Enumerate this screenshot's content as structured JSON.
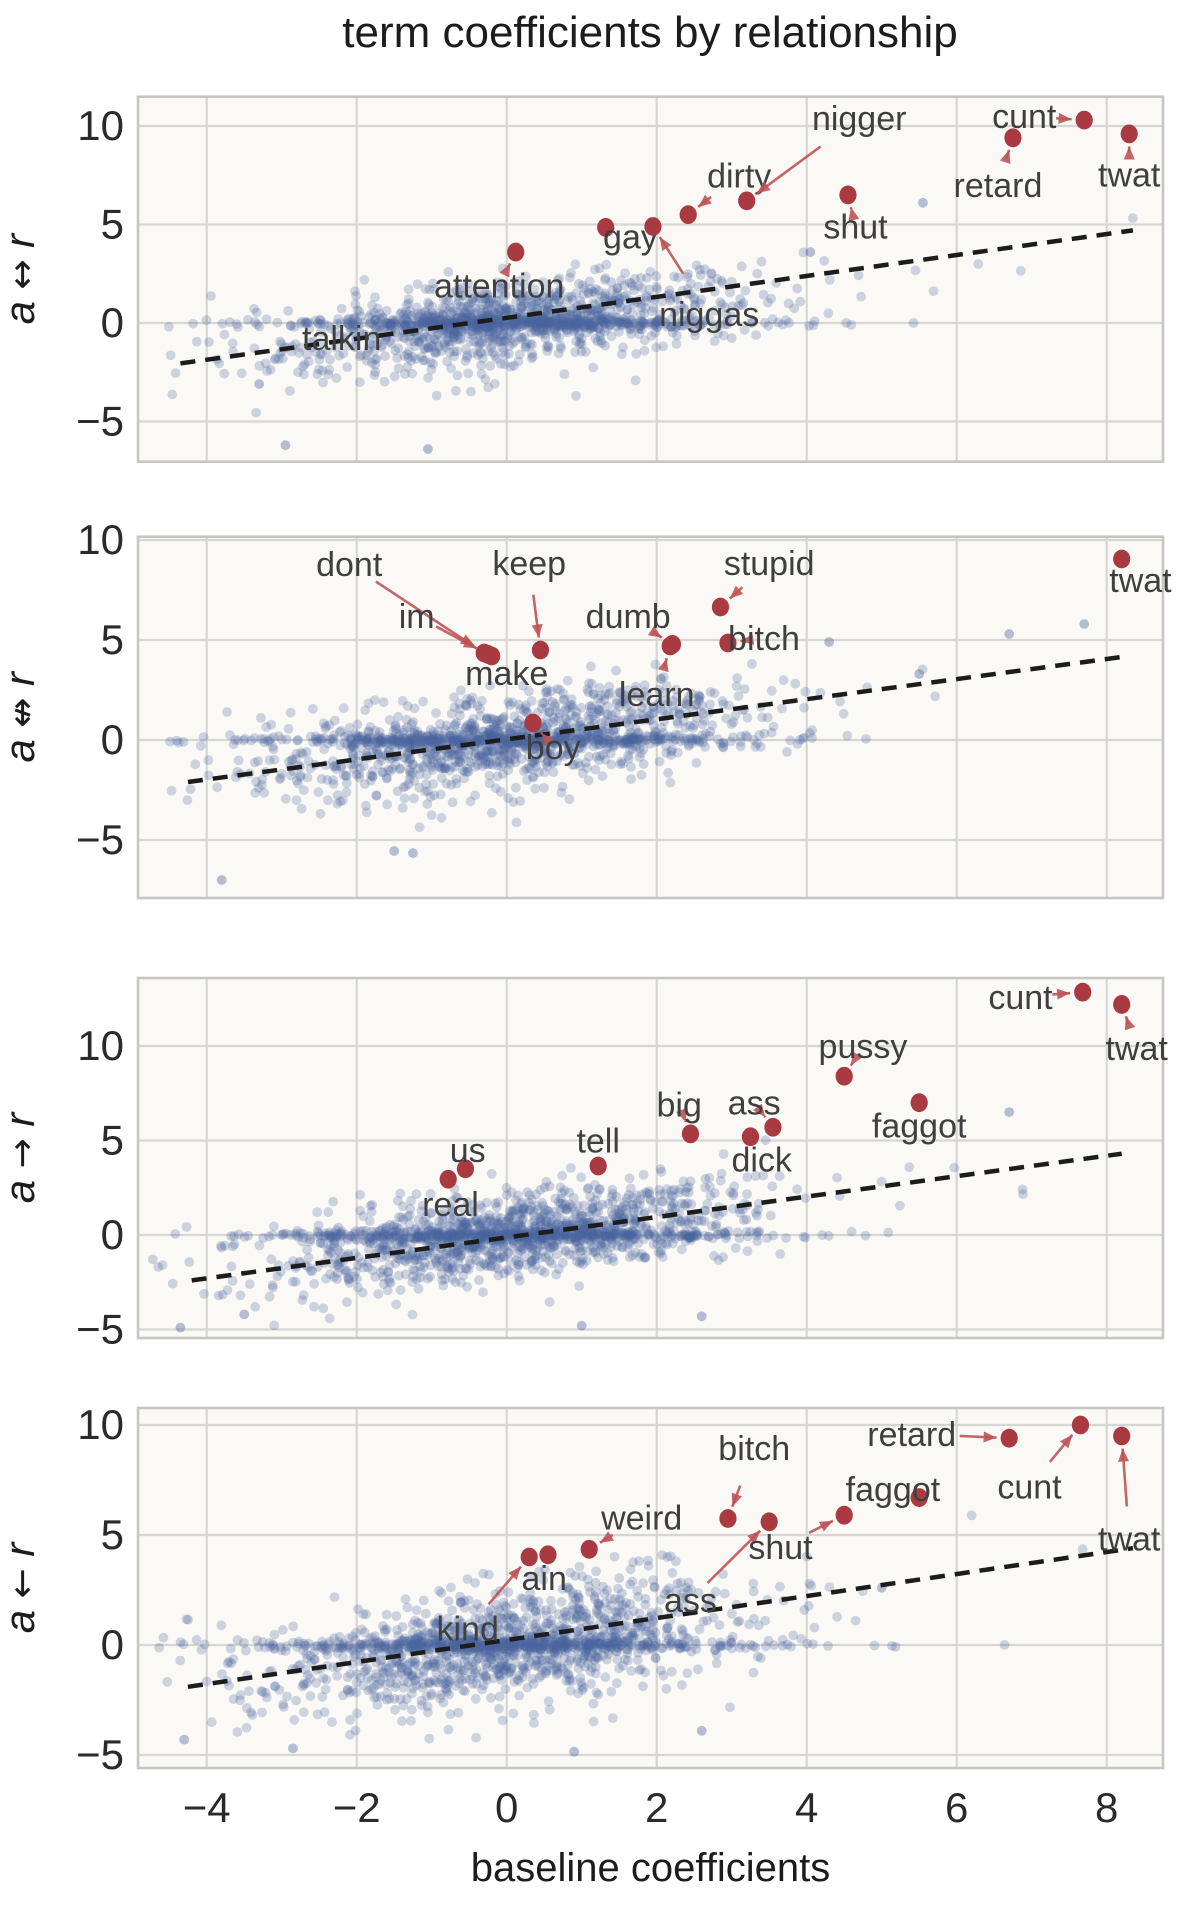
{
  "title": "term coefficients by relationship",
  "xlabel": "baseline coefficients",
  "colors": {
    "background": "#ffffff",
    "panel_bg": "#faf9f5",
    "grid": "#d6d6d3",
    "frame": "#c6c6c3",
    "scatter_blue": "#4a639e",
    "highlight_red": "#a93a42",
    "arrow_red": "#bf5358",
    "annotation_text": "#3f3f3f",
    "trend_dash": "#1c1c1c"
  },
  "chart_data": {
    "type": "scatter",
    "title": "term coefficients by relationship",
    "xlabel": "baseline coefficients",
    "x_ticks": [
      -4,
      -2,
      0,
      2,
      4,
      6,
      8
    ],
    "x_tick_labels": [
      "−4",
      "−2",
      "0",
      "2",
      "4",
      "6",
      "8"
    ],
    "x_range": [
      -4.92,
      8.75
    ],
    "grid": true,
    "legend": "none",
    "description": "Four stacked scatter panels of term coefficients vs baseline coefficients; dense blue cloud of unlabeled terms (synthesized from cloud params), dashed trend line, dark-red annotated outlier terms.",
    "panels": [
      {
        "ylabel": "a ↔ r",
        "y_ticks": [
          10,
          5,
          0,
          -5
        ],
        "y_tick_labels": [
          "10",
          "5",
          "0",
          "−5"
        ],
        "y_range": [
          -7.0,
          11.5
        ],
        "trend_line": {
          "x1": -4.35,
          "y1": -2.05,
          "x2": 8.35,
          "y2": 4.7
        },
        "cloud": {
          "n": 1450,
          "seed": 11,
          "x_mean": 0.0,
          "x_sigma": 1.5,
          "slope": 0.45,
          "noise": 1.0,
          "band_frac": 0.3
        },
        "outliers": [
          [
            -1.05,
            -6.4
          ],
          [
            -2.95,
            -6.2
          ],
          [
            5.55,
            6.1
          ],
          [
            -3.3,
            -3.1
          ],
          [
            4.05,
            3.6
          ]
        ],
        "annotations": [
          {
            "term": "talkin",
            "label": [
              -2.2,
              -0.75
            ],
            "point": null
          },
          {
            "term": "attention",
            "label": [
              -0.1,
              1.9
            ],
            "point": [
              0.12,
              3.6
            ]
          },
          {
            "term": "gay",
            "label": [
              1.65,
              4.4
            ],
            "point": [
              1.32,
              4.85
            ]
          },
          {
            "term": "niggas",
            "label": [
              2.7,
              0.45
            ],
            "point": [
              1.95,
              4.9
            ]
          },
          {
            "term": "dirty",
            "label": [
              3.1,
              7.5
            ],
            "point": [
              2.42,
              5.5
            ]
          },
          {
            "term": "nigger",
            "label": [
              4.7,
              10.4
            ],
            "point": [
              3.2,
              6.2
            ]
          },
          {
            "term": "shut",
            "label": [
              4.65,
              4.9
            ],
            "point": [
              4.55,
              6.5
            ]
          },
          {
            "term": "retard",
            "label": [
              6.55,
              7.0
            ],
            "point": [
              6.75,
              9.4
            ]
          },
          {
            "term": "cunt",
            "label": [
              6.9,
              10.5
            ],
            "point": [
              7.7,
              10.3
            ]
          },
          {
            "term": "twat",
            "label": [
              8.3,
              7.55
            ],
            "point": [
              8.3,
              9.6
            ]
          }
        ]
      },
      {
        "ylabel": "a ↮ r",
        "y_ticks": [
          10,
          5,
          0,
          -5
        ],
        "y_tick_labels": [
          "10",
          "5",
          "0",
          "−5"
        ],
        "y_range": [
          -7.9,
          10.2
        ],
        "trend_line": {
          "x1": -4.25,
          "y1": -2.1,
          "x2": 8.2,
          "y2": 4.15
        },
        "cloud": {
          "n": 1500,
          "seed": 23,
          "x_mean": 0.0,
          "x_sigma": 1.5,
          "slope": 0.42,
          "noise": 1.15,
          "band_frac": 0.28
        },
        "outliers": [
          [
            -3.8,
            -7.0
          ],
          [
            -1.5,
            -5.55
          ],
          [
            -1.25,
            -5.65
          ],
          [
            6.7,
            5.3
          ],
          [
            7.7,
            5.8
          ],
          [
            4.3,
            4.9
          ],
          [
            5.5,
            3.3
          ]
        ],
        "annotations": [
          {
            "term": "dont",
            "label": [
              -2.1,
              8.8
            ],
            "point": [
              -0.3,
              4.35
            ]
          },
          {
            "term": "im",
            "label": [
              -1.2,
              6.2
            ],
            "point": [
              -0.25,
              4.28
            ]
          },
          {
            "term": "keep",
            "label": [
              0.3,
              8.85
            ],
            "point": [
              0.45,
              4.5
            ]
          },
          {
            "term": "make",
            "label": [
              0.0,
              3.35
            ],
            "point": [
              -0.2,
              4.2
            ]
          },
          {
            "term": "boy",
            "label": [
              0.62,
              -0.35
            ],
            "point": [
              0.35,
              0.85
            ]
          },
          {
            "term": "learn",
            "label": [
              2.0,
              2.3
            ],
            "point": [
              2.18,
              4.7
            ]
          },
          {
            "term": "dumb",
            "label": [
              1.62,
              6.2
            ],
            "point": [
              2.21,
              4.78
            ]
          },
          {
            "term": "bitch",
            "label": [
              3.43,
              5.1
            ],
            "point": [
              2.95,
              4.85
            ]
          },
          {
            "term": "stupid",
            "label": [
              3.5,
              8.85
            ],
            "point": [
              2.85,
              6.65
            ]
          },
          {
            "term": "twat",
            "label": [
              8.45,
              8.0
            ],
            "point": [
              8.2,
              9.05
            ]
          }
        ]
      },
      {
        "ylabel": "a → r",
        "y_ticks": [
          10,
          5,
          0,
          -5
        ],
        "y_tick_labels": [
          "10",
          "5",
          "0",
          "−5"
        ],
        "y_range": [
          -5.45,
          13.55
        ],
        "trend_line": {
          "x1": -4.2,
          "y1": -2.4,
          "x2": 8.2,
          "y2": 4.3
        },
        "cloud": {
          "n": 1600,
          "seed": 37,
          "x_mean": 0.1,
          "x_sigma": 1.55,
          "slope": 0.5,
          "noise": 1.1,
          "band_frac": 0.28
        },
        "outliers": [
          [
            6.7,
            6.5
          ],
          [
            -4.35,
            -4.9
          ],
          [
            1.0,
            -4.8
          ],
          [
            -3.5,
            -4.2
          ],
          [
            2.6,
            -4.3
          ]
        ],
        "annotations": [
          {
            "term": "real",
            "label": [
              -0.75,
              1.65
            ],
            "point": [
              -0.78,
              2.95
            ]
          },
          {
            "term": "us",
            "label": [
              -0.52,
              4.5
            ],
            "point": [
              -0.55,
              3.5
            ]
          },
          {
            "term": "tell",
            "label": [
              1.22,
              5.0
            ],
            "point": [
              1.22,
              3.65
            ]
          },
          {
            "term": "big",
            "label": [
              2.3,
              6.9
            ],
            "point": [
              2.45,
              5.35
            ]
          },
          {
            "term": "ass",
            "label": [
              3.3,
              7.0
            ],
            "point": [
              3.55,
              5.7
            ]
          },
          {
            "term": "dick",
            "label": [
              3.4,
              4.0
            ],
            "point": [
              3.25,
              5.2
            ]
          },
          {
            "term": "pussy",
            "label": [
              4.75,
              10.0
            ],
            "point": [
              4.5,
              8.4
            ]
          },
          {
            "term": "faggot",
            "label": [
              5.5,
              5.8
            ],
            "point": [
              5.5,
              7.0
            ]
          },
          {
            "term": "cunt",
            "label": [
              6.85,
              12.6
            ],
            "point": [
              7.68,
              12.85
            ]
          },
          {
            "term": "twat",
            "label": [
              8.4,
              9.9
            ],
            "point": [
              8.2,
              12.2
            ]
          }
        ]
      },
      {
        "ylabel": "a ← r",
        "y_ticks": [
          10,
          5,
          0,
          -5
        ],
        "y_tick_labels": [
          "10",
          "5",
          "0",
          "−5"
        ],
        "y_range": [
          -5.6,
          10.77
        ],
        "trend_line": {
          "x1": -4.25,
          "y1": -1.9,
          "x2": 8.35,
          "y2": 4.4
        },
        "cloud": {
          "n": 1600,
          "seed": 51,
          "x_mean": 0.0,
          "x_sigma": 1.55,
          "slope": 0.5,
          "noise": 1.25,
          "band_frac": 0.27
        },
        "outliers": [
          [
            -2.85,
            -4.7
          ],
          [
            0.9,
            -4.85
          ],
          [
            -4.3,
            -4.3
          ],
          [
            2.6,
            -3.9
          ],
          [
            5.0,
            2.6
          ]
        ],
        "annotations": [
          {
            "term": "kind",
            "label": [
              -0.52,
              0.75
            ],
            "point": [
              0.3,
              4.0
            ]
          },
          {
            "term": "ain",
            "label": [
              0.5,
              3.05
            ],
            "point": [
              0.55,
              4.1
            ]
          },
          {
            "term": "weird",
            "label": [
              1.8,
              5.8
            ],
            "point": [
              1.1,
              4.35
            ]
          },
          {
            "term": "ass",
            "label": [
              2.45,
              2.05
            ],
            "point": [
              3.5,
              5.6
            ]
          },
          {
            "term": "bitch",
            "label": [
              3.3,
              8.95
            ],
            "point": [
              2.95,
              5.75
            ]
          },
          {
            "term": "shut",
            "label": [
              3.65,
              4.45
            ],
            "point": [
              4.5,
              5.9
            ]
          },
          {
            "term": "faggot",
            "label": [
              5.15,
              7.1
            ],
            "point": [
              5.5,
              6.7
            ]
          },
          {
            "term": "retard",
            "label": [
              5.4,
              9.6
            ],
            "point": [
              6.7,
              9.4
            ]
          },
          {
            "term": "cunt",
            "label": [
              6.97,
              7.2
            ],
            "point": [
              7.65,
              10.0
            ]
          },
          {
            "term": "twat",
            "label": [
              8.3,
              4.85
            ],
            "point": [
              8.2,
              9.5
            ]
          }
        ]
      }
    ]
  }
}
